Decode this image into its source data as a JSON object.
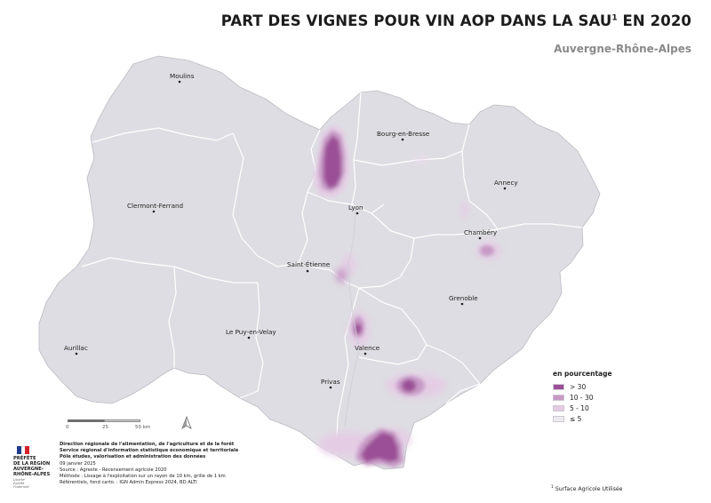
{
  "title": "PART DES VIGNES POUR VIN AOP DANS LA SAU",
  "title_sup": "1",
  "title_suffix": " EN 2020",
  "subtitle": "Auvergne-Rhône-Alpes",
  "cities": [
    {
      "name": "Moulins"
    },
    {
      "name": "Bourg-en-Bresse"
    },
    {
      "name": "Annecy"
    },
    {
      "name": "Clermont-Ferrand"
    },
    {
      "name": "Lyon"
    },
    {
      "name": "Chambéry"
    },
    {
      "name": "Saint-Étienne"
    },
    {
      "name": "Grenoble"
    },
    {
      "name": "Le Puy-en-Velay"
    },
    {
      "name": "Valence"
    },
    {
      "name": "Aurillac"
    },
    {
      "name": "Privas"
    }
  ],
  "legend": {
    "title": "en pourcentage",
    "items": [
      {
        "label": "> 30",
        "color": "#9b4f96"
      },
      {
        "label": "10 - 30",
        "color": "#c79ac6"
      },
      {
        "label": "5 - 10",
        "color": "#e4cde4"
      },
      {
        "label": "≤ 5",
        "color": "#ecebee"
      }
    ]
  },
  "scale": {
    "ticks": [
      "0",
      "25",
      "50 km"
    ]
  },
  "logo": {
    "line1": "PRÉFÈTE",
    "line2": "DE LA RÉGION",
    "line3": "AUVERGNE-",
    "line4": "RHÔNE-ALPES",
    "motto1": "Liberté",
    "motto2": "Égalité",
    "motto3": "Fraternité"
  },
  "credits": {
    "org1": "Direction régionale de l'alimentation, de l'agriculture et de la forêt",
    "org2": "Service régional d'information statistique économique et territoriale",
    "org3": "Pôle études, valorisation et administration des données",
    "date": "09 janvier 2025",
    "source": "Source : Agreste - Recensement agricole 2020",
    "method": "Méthode : Lissage à l'exploitation sur un rayon de 10 km, grille de 1 km",
    "refs": "Référentiels, fond carto. : IGN Admin Express 2024, BD ALTI"
  },
  "footnote": {
    "sup": "1",
    "text": " Surface Agricole Utilisée"
  },
  "colors": {
    "map_fill": "#dedde3",
    "borders": "#ffffff",
    "high": "#9b4f96",
    "mid": "#c79ac6",
    "low": "#e4cde4"
  }
}
